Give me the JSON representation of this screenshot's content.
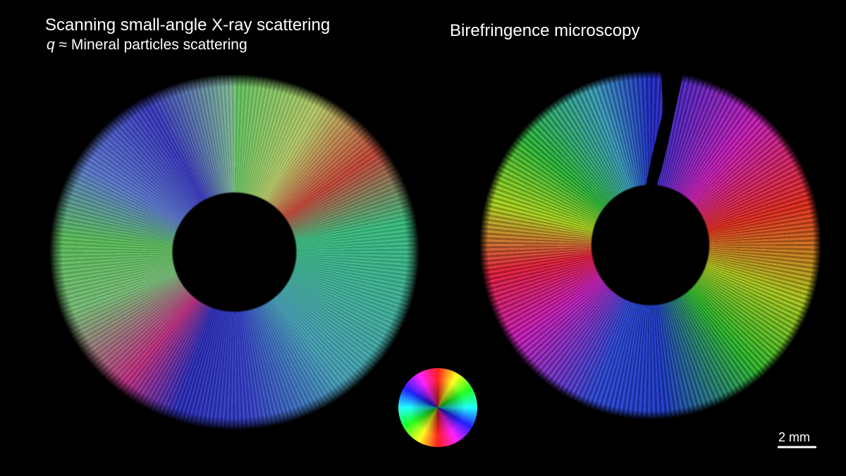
{
  "left_panel": {
    "title": "Scanning small-angle X-ray scattering",
    "subtitle_symbol": "q",
    "subtitle": "≈ Mineral particles scattering"
  },
  "right_panel": {
    "title": "Birefringence microscopy"
  },
  "scale_bar": {
    "label": "2 mm"
  }
}
